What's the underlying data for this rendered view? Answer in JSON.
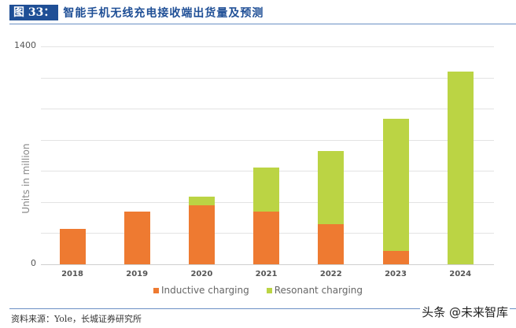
{
  "header": {
    "figure_label": "图 33：",
    "title": "智能手机无线充电接收端出货量及预测"
  },
  "chart_data": {
    "type": "bar",
    "stacked": true,
    "title": "智能手机无线充电接收端出货量及预测",
    "xlabel": "",
    "ylabel": "Units in million",
    "ylim": [
      0,
      1400
    ],
    "yticks_labeled": [
      "0",
      "1400"
    ],
    "grid_step": 200,
    "grid": true,
    "legend_position": "bottom",
    "categories": [
      "2018",
      "2019",
      "2020",
      "2021",
      "2022",
      "2023",
      "2024"
    ],
    "series": [
      {
        "name": "Inductive charging",
        "color": "#ee7a31",
        "values": [
          227,
          338,
          379,
          337,
          256,
          84,
          0
        ]
      },
      {
        "name": "Resonant charging",
        "color": "#bbd444",
        "values": [
          0,
          0,
          55,
          286,
          470,
          850,
          1236
        ]
      }
    ]
  },
  "legend": [
    {
      "label": "Inductive charging",
      "color": "#ee7a31"
    },
    {
      "label": "Resonant charging",
      "color": "#bbd444"
    }
  ],
  "footer": {
    "source": "资料来源：Yole，长城证券研究所",
    "watermark": "头条 @未来智库"
  }
}
